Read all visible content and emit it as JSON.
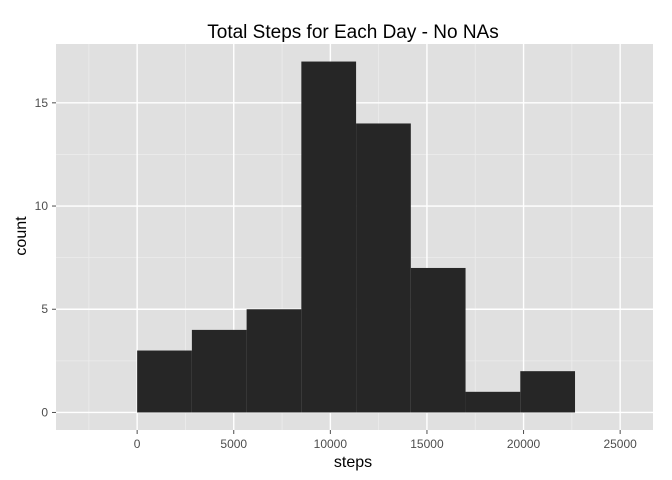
{
  "chart_data": {
    "type": "bar",
    "title": "Total Steps for Each Day - No NAs",
    "xlabel": "steps",
    "ylabel": "count",
    "bin_width": 2833,
    "bins": [
      {
        "x_start": 0,
        "x_end": 2833,
        "count": 3
      },
      {
        "x_start": 2833,
        "x_end": 5666,
        "count": 4
      },
      {
        "x_start": 5666,
        "x_end": 8499,
        "count": 5
      },
      {
        "x_start": 8499,
        "x_end": 11332,
        "count": 17
      },
      {
        "x_start": 11332,
        "x_end": 14165,
        "count": 14
      },
      {
        "x_start": 14165,
        "x_end": 16998,
        "count": 7
      },
      {
        "x_start": 16998,
        "x_end": 19831,
        "count": 1
      },
      {
        "x_start": 19831,
        "x_end": 22664,
        "count": 2
      }
    ],
    "xlim": [
      -4200,
      26700
    ],
    "ylim": [
      -0.85,
      17.85
    ],
    "x_ticks": [
      0,
      5000,
      10000,
      15000,
      20000,
      25000
    ],
    "x_tick_labels": [
      "0",
      "5000",
      "10000",
      "15000",
      "20000",
      "25000"
    ],
    "y_ticks": [
      0,
      5,
      10,
      15
    ],
    "y_tick_labels": [
      "0",
      "5",
      "10",
      "15"
    ],
    "grid": true,
    "colors": {
      "panel_background": "#e0e0e0",
      "major_grid": "#ffffff",
      "minor_grid": "#ececec",
      "bar_fill": "#262626",
      "tick_mark": "#4d4d4d"
    }
  }
}
